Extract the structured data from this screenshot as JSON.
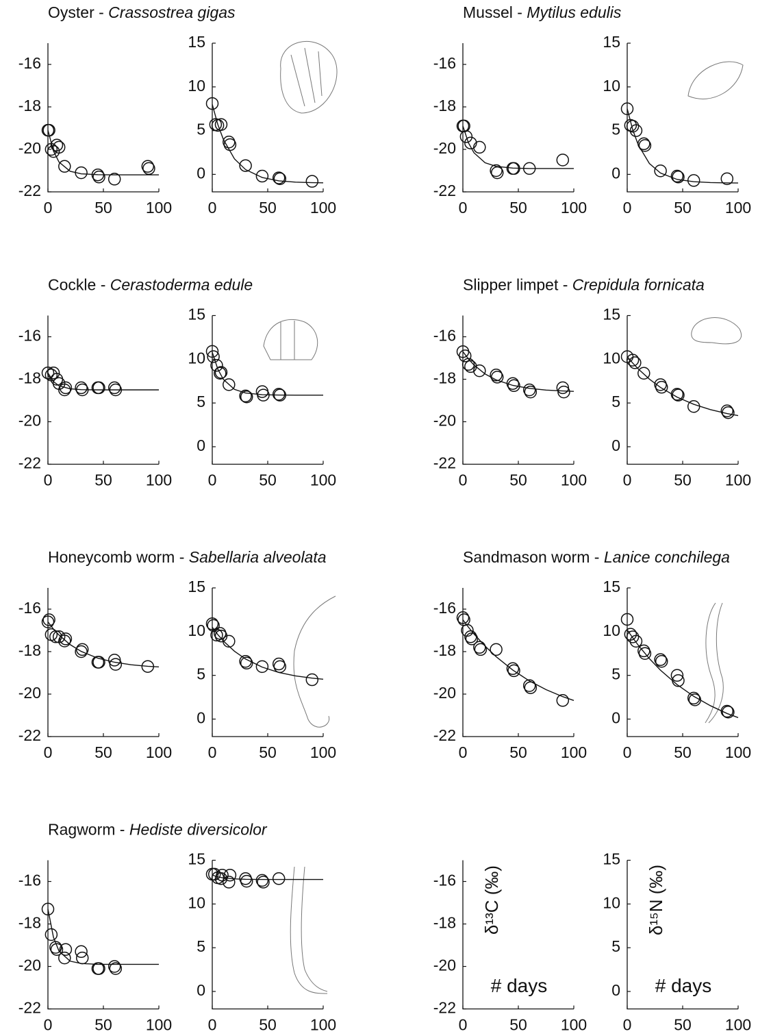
{
  "chart_data": [
    {
      "type": "scatter",
      "title": {
        "common": "Oyster - ",
        "latin": "Crassostrea gigas"
      },
      "xlim": [
        0,
        100
      ],
      "xticks": [
        0,
        50,
        100
      ],
      "ylim": [
        -22,
        -15
      ],
      "yticks": [
        -22,
        -20,
        -18,
        -16
      ],
      "points": {
        "x": [
          0,
          1,
          3,
          5,
          8,
          10,
          15,
          30,
          45,
          46,
          60,
          90,
          91
        ],
        "values": [
          -19.1,
          -19.1,
          -20.0,
          -20.1,
          -19.8,
          -19.9,
          -20.8,
          -21.1,
          -21.2,
          -21.3,
          -21.4,
          -20.8,
          -20.9
        ]
      },
      "fit": {
        "x": [
          0,
          5,
          10,
          20,
          30,
          45,
          60,
          75,
          90,
          100
        ],
        "values": [
          -19.1,
          -20.08,
          -20.6,
          -21.03,
          -21.15,
          -21.19,
          -21.2,
          -21.2,
          -21.2,
          -21.2
        ]
      }
    },
    {
      "type": "scatter",
      "xlim": [
        0,
        100
      ],
      "xticks": [
        0,
        50,
        100
      ],
      "ylim": [
        -2,
        15
      ],
      "yticks": [
        0,
        5,
        10,
        15
      ],
      "points": {
        "x": [
          0,
          3,
          5,
          8,
          15,
          16,
          30,
          45,
          60,
          61,
          90
        ],
        "values": [
          8.1,
          5.7,
          5.6,
          5.7,
          3.7,
          3.4,
          1.0,
          -0.2,
          -0.4,
          -0.5,
          -0.8
        ]
      },
      "fit": {
        "x": [
          0,
          5,
          10,
          20,
          30,
          45,
          60,
          75,
          90,
          100
        ],
        "values": [
          8,
          5.7,
          4.0,
          1.77,
          0.55,
          -0.36,
          -0.74,
          -0.89,
          -0.95,
          -0.97
        ]
      }
    },
    {
      "type": "scatter",
      "title": {
        "common": "Mussel - ",
        "latin": "Mytilus edulis"
      },
      "xlim": [
        0,
        100
      ],
      "xticks": [
        0,
        50,
        100
      ],
      "ylim": [
        -22,
        -15
      ],
      "yticks": [
        -22,
        -20,
        -18,
        -16
      ],
      "points": {
        "x": [
          0,
          1,
          3,
          7,
          15,
          30,
          31,
          45,
          46,
          60,
          90
        ],
        "values": [
          -18.9,
          -18.9,
          -19.4,
          -19.7,
          -19.9,
          -21.0,
          -21.1,
          -20.9,
          -20.9,
          -20.9,
          -20.5
        ]
      },
      "fit": {
        "x": [
          0,
          5,
          10,
          20,
          30,
          45,
          60,
          75,
          90,
          100
        ],
        "values": [
          -18.9,
          -19.69,
          -20.16,
          -20.63,
          -20.8,
          -20.88,
          -20.9,
          -20.9,
          -20.9,
          -20.9
        ]
      }
    },
    {
      "type": "scatter",
      "xlim": [
        0,
        100
      ],
      "xticks": [
        0,
        50,
        100
      ],
      "ylim": [
        -2,
        15
      ],
      "yticks": [
        0,
        5,
        10,
        15
      ],
      "points": {
        "x": [
          0,
          3,
          5,
          8,
          15,
          16,
          30,
          45,
          46,
          60,
          90
        ],
        "values": [
          7.5,
          5.6,
          5.5,
          5.0,
          3.5,
          3.3,
          0.4,
          -0.2,
          -0.3,
          -0.7,
          -0.5
        ]
      },
      "fit": {
        "x": [
          0,
          5,
          10,
          20,
          30,
          45,
          60,
          75,
          90,
          100
        ],
        "values": [
          7.5,
          5.09,
          3.36,
          1.24,
          0.15,
          -0.58,
          -0.84,
          -0.94,
          -0.98,
          -0.99
        ]
      }
    },
    {
      "type": "scatter",
      "title": {
        "common": "Cockle - ",
        "latin": "Cerastoderma edule"
      },
      "xlim": [
        0,
        100
      ],
      "xticks": [
        0,
        50,
        100
      ],
      "ylim": [
        -22,
        -15
      ],
      "yticks": [
        -22,
        -20,
        -18,
        -16
      ],
      "points": {
        "x": [
          0,
          3,
          5,
          8,
          10,
          15,
          16,
          30,
          31,
          45,
          46,
          60,
          61
        ],
        "values": [
          -17.7,
          -17.8,
          -17.7,
          -18.0,
          -18.2,
          -18.5,
          -18.4,
          -18.4,
          -18.5,
          -18.4,
          -18.4,
          -18.4,
          -18.5
        ]
      },
      "fit": {
        "x": [
          0,
          5,
          10,
          20,
          30,
          45,
          60,
          75,
          90,
          100
        ],
        "values": [
          -17.7,
          -18.11,
          -18.31,
          -18.45,
          -18.49,
          -18.5,
          -18.5,
          -18.5,
          -18.5,
          -18.5
        ]
      }
    },
    {
      "type": "scatter",
      "xlim": [
        0,
        100
      ],
      "xticks": [
        0,
        50,
        100
      ],
      "ylim": [
        -2,
        15
      ],
      "yticks": [
        0,
        5,
        10,
        15
      ],
      "points": {
        "x": [
          0,
          1,
          4,
          7,
          8,
          15,
          30,
          31,
          45,
          46,
          60,
          61
        ],
        "values": [
          10.9,
          10.3,
          9.3,
          8.4,
          8.5,
          7.1,
          5.8,
          5.7,
          6.3,
          5.9,
          6.0,
          5.9
        ]
      },
      "fit": {
        "x": [
          0,
          5,
          10,
          20,
          30,
          45,
          60,
          75,
          90,
          100
        ],
        "values": [
          10.8,
          8.87,
          7.7,
          6.56,
          6.14,
          5.95,
          5.91,
          5.9,
          5.9,
          5.9
        ]
      }
    },
    {
      "type": "scatter",
      "title": {
        "common": "Slipper limpet - ",
        "latin": "Crepidula fornicata"
      },
      "xlim": [
        0,
        100
      ],
      "xticks": [
        0,
        50,
        100
      ],
      "ylim": [
        -22,
        -15
      ],
      "yticks": [
        -22,
        -20,
        -18,
        -16
      ],
      "points": {
        "x": [
          0,
          2,
          5,
          7,
          15,
          30,
          31,
          45,
          46,
          60,
          61,
          90,
          91
        ],
        "values": [
          -16.7,
          -16.9,
          -17.3,
          -17.4,
          -17.6,
          -17.8,
          -17.9,
          -18.2,
          -18.3,
          -18.5,
          -18.6,
          -18.4,
          -18.6
        ]
      },
      "fit": {
        "x": [
          0,
          5,
          10,
          20,
          30,
          45,
          60,
          75,
          90,
          100
        ],
        "values": [
          -16.7,
          -17.04,
          -17.33,
          -17.75,
          -18.03,
          -18.29,
          -18.43,
          -18.51,
          -18.55,
          -18.57
        ]
      }
    },
    {
      "type": "scatter",
      "xlim": [
        0,
        100
      ],
      "xticks": [
        0,
        50,
        100
      ],
      "ylim": [
        -2,
        15
      ],
      "yticks": [
        0,
        5,
        10,
        15
      ],
      "points": {
        "x": [
          0,
          5,
          7,
          15,
          30,
          31,
          45,
          46,
          60,
          90,
          91
        ],
        "values": [
          10.3,
          9.9,
          9.6,
          8.4,
          7.1,
          6.8,
          6.0,
          5.9,
          4.6,
          4.1,
          3.9
        ]
      },
      "fit": {
        "x": [
          0,
          5,
          10,
          20,
          30,
          45,
          60,
          75,
          90,
          100
        ],
        "values": [
          10.3,
          9.56,
          8.89,
          7.73,
          6.78,
          5.67,
          4.85,
          4.24,
          3.79,
          3.56
        ]
      }
    },
    {
      "type": "scatter",
      "title": {
        "common": "Honeycomb worm - ",
        "latin": "Sabellaria alveolata"
      },
      "xlim": [
        0,
        100
      ],
      "xticks": [
        0,
        50,
        100
      ],
      "ylim": [
        -22,
        -15
      ],
      "yticks": [
        -22,
        -20,
        -18,
        -16
      ],
      "points": {
        "x": [
          0,
          1,
          3,
          7,
          10,
          15,
          16,
          30,
          31,
          45,
          46,
          60,
          61,
          90
        ],
        "values": [
          -16.6,
          -16.5,
          -17.2,
          -17.3,
          -17.3,
          -17.5,
          -17.4,
          -18.0,
          -17.9,
          -18.5,
          -18.5,
          -18.4,
          -18.6,
          -18.7
        ]
      },
      "fit": {
        "x": [
          0,
          5,
          10,
          20,
          30,
          45,
          60,
          75,
          90,
          100
        ],
        "values": [
          -16.6,
          -16.94,
          -17.22,
          -17.67,
          -17.99,
          -18.31,
          -18.5,
          -18.62,
          -18.69,
          -18.72
        ]
      }
    },
    {
      "type": "scatter",
      "xlim": [
        0,
        100
      ],
      "xticks": [
        0,
        50,
        100
      ],
      "ylim": [
        -2,
        15
      ],
      "yticks": [
        0,
        5,
        10,
        15
      ],
      "points": {
        "x": [
          0,
          1,
          4,
          7,
          8,
          15,
          30,
          31,
          45,
          60,
          61,
          90
        ],
        "values": [
          10.9,
          10.7,
          9.6,
          9.8,
          9.5,
          8.9,
          6.6,
          6.4,
          6.0,
          6.3,
          6.0,
          4.5
        ]
      },
      "fit": {
        "x": [
          0,
          5,
          10,
          20,
          30,
          45,
          60,
          75,
          90,
          100
        ],
        "values": [
          10.5,
          9.66,
          8.93,
          7.76,
          6.87,
          5.94,
          5.33,
          4.94,
          4.68,
          4.56
        ]
      }
    },
    {
      "type": "scatter",
      "title": {
        "common": "Sandmason worm - ",
        "latin": "Lanice conchilega"
      },
      "xlim": [
        0,
        100
      ],
      "xticks": [
        0,
        50,
        100
      ],
      "ylim": [
        -22,
        -15
      ],
      "yticks": [
        -22,
        -20,
        -18,
        -16
      ],
      "points": {
        "x": [
          0,
          1,
          4,
          7,
          8,
          15,
          16,
          30,
          45,
          46,
          60,
          61,
          90
        ],
        "values": [
          -16.4,
          -16.5,
          -17.0,
          -17.3,
          -17.4,
          -17.8,
          -17.9,
          -17.9,
          -18.8,
          -18.9,
          -19.6,
          -19.7,
          -20.3
        ]
      },
      "fit": {
        "x": [
          0,
          5,
          10,
          20,
          30,
          45,
          60,
          75,
          90,
          100
        ],
        "values": [
          -16.5,
          -16.85,
          -17.17,
          -17.74,
          -18.24,
          -18.87,
          -19.38,
          -19.79,
          -20.12,
          -20.3
        ]
      }
    },
    {
      "type": "scatter",
      "xlim": [
        0,
        100
      ],
      "xticks": [
        0,
        50,
        100
      ],
      "ylim": [
        -2,
        15
      ],
      "yticks": [
        0,
        5,
        10,
        15
      ],
      "points": {
        "x": [
          0,
          3,
          5,
          8,
          15,
          16,
          30,
          31,
          45,
          46,
          60,
          61,
          90,
          91
        ],
        "values": [
          11.4,
          9.7,
          9.4,
          8.9,
          7.8,
          7.5,
          6.8,
          6.6,
          5.0,
          4.4,
          2.4,
          2.2,
          0.9,
          0.8
        ]
      },
      "fit": {
        "x": [
          0,
          5,
          10,
          20,
          30,
          45,
          60,
          75,
          90,
          100
        ],
        "values": [
          10.2,
          9.29,
          8.44,
          6.91,
          5.59,
          3.94,
          2.6,
          1.53,
          0.64,
          0.17
        ]
      }
    },
    {
      "type": "scatter",
      "title": {
        "common": "Ragworm - ",
        "latin": "Hediste diversicolor"
      },
      "xlim": [
        0,
        100
      ],
      "xticks": [
        0,
        50,
        100
      ],
      "ylim": [
        -22,
        -15
      ],
      "yticks": [
        -22,
        -20,
        -18,
        -16
      ],
      "points": {
        "x": [
          0,
          3,
          7,
          8,
          15,
          16,
          30,
          31,
          45,
          46,
          60,
          61
        ],
        "values": [
          -17.3,
          -18.5,
          -19.1,
          -19.2,
          -19.6,
          -19.2,
          -19.3,
          -19.6,
          -20.1,
          -20.1,
          -20.0,
          -20.1
        ]
      },
      "fit": {
        "x": [
          0,
          5,
          10,
          20,
          30,
          45,
          60,
          75,
          90,
          100
        ],
        "values": [
          -17.3,
          -18.63,
          -19.28,
          -19.75,
          -19.86,
          -19.9,
          -19.9,
          -19.9,
          -19.9,
          -19.9
        ]
      }
    },
    {
      "type": "scatter",
      "xlim": [
        0,
        100
      ],
      "xticks": [
        0,
        50,
        100
      ],
      "ylim": [
        -2,
        15
      ],
      "yticks": [
        0,
        5,
        10,
        15
      ],
      "points": {
        "x": [
          0,
          2,
          5,
          8,
          9,
          15,
          16,
          30,
          31,
          45,
          46,
          60
        ],
        "values": [
          13.4,
          13.4,
          13.0,
          12.9,
          13.3,
          12.5,
          13.3,
          12.9,
          12.6,
          12.7,
          12.5,
          12.9
        ]
      },
      "fit": {
        "x": [
          0,
          5,
          10,
          20,
          30,
          45,
          60,
          75,
          90,
          100
        ],
        "values": [
          13.3,
          13.1,
          12.98,
          12.87,
          12.82,
          12.8,
          12.8,
          12.8,
          12.8,
          12.8
        ]
      }
    },
    {
      "type": "scatter",
      "xlim": [
        0,
        100
      ],
      "xticks": [
        0,
        50,
        100
      ],
      "ylim": [
        -22,
        -15
      ],
      "yticks": [
        -22,
        -20,
        -18,
        -16
      ],
      "ylabel": "δ¹³C (‰)",
      "xlabel": "# days"
    },
    {
      "type": "scatter",
      "xlim": [
        0,
        100
      ],
      "xticks": [
        0,
        50,
        100
      ],
      "ylim": [
        -2,
        15
      ],
      "yticks": [
        0,
        5,
        10,
        15
      ],
      "ylabel": "δ¹⁵N (‰)",
      "xlabel": "# days"
    }
  ]
}
